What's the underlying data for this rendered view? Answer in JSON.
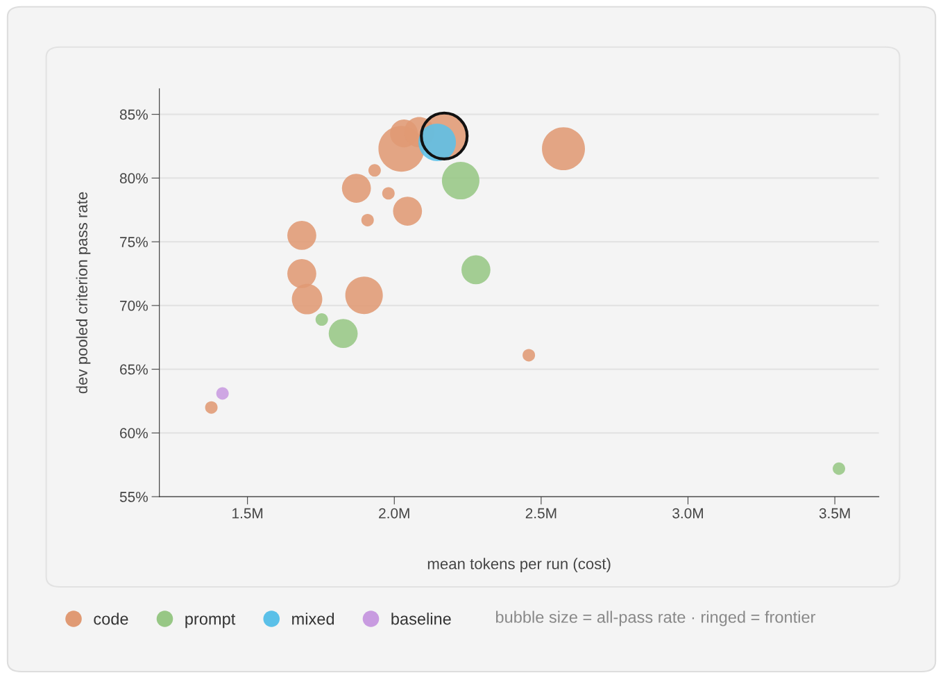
{
  "chart_data": {
    "type": "bubble",
    "xlabel": "mean tokens per run (cost)",
    "ylabel": "dev pooled criterion pass rate",
    "xlim": [
      1.2,
      3.65
    ],
    "xticks": [
      {
        "value": 1.5,
        "label": "1.5M"
      },
      {
        "value": 2.0,
        "label": "2.0M"
      },
      {
        "value": 2.5,
        "label": "2.5M"
      },
      {
        "value": 3.0,
        "label": "3.0M"
      },
      {
        "value": 3.5,
        "label": "3.5M"
      }
    ],
    "ylim": [
      55,
      87
    ],
    "yticks": [
      {
        "value": 55,
        "label": "55%"
      },
      {
        "value": 60,
        "label": "60%"
      },
      {
        "value": 65,
        "label": "65%"
      },
      {
        "value": 70,
        "label": "70%"
      },
      {
        "value": 75,
        "label": "75%"
      },
      {
        "value": 80,
        "label": "80%"
      },
      {
        "value": 85,
        "label": "85%"
      }
    ],
    "grid": "y",
    "legend": "bottom",
    "marker": "circle",
    "annotations": [
      "bubble size = all-pass rate · ringed = frontier"
    ],
    "series": [
      {
        "name": "code",
        "color": "#e09a74",
        "x": [
          1.377,
          1.685,
          1.685,
          1.703,
          1.897,
          1.871,
          1.933,
          1.98,
          1.909,
          2.045,
          2.024,
          2.033,
          2.085,
          2.17,
          2.576,
          2.458
        ],
        "values": [
          62.0,
          75.5,
          72.5,
          70.5,
          70.8,
          79.2,
          80.6,
          78.8,
          76.7,
          77.4,
          82.3,
          83.5,
          83.6,
          83.3,
          82.3,
          66.1
        ],
        "sizes": [
          0.074,
          0.4,
          0.4,
          0.44,
          0.67,
          0.4,
          0.074,
          0.074,
          0.074,
          0.4,
          1,
          0.37,
          0.44,
          1,
          0.88,
          0.074
        ]
      },
      {
        "name": "prompt",
        "color": "#97c785",
        "x": [
          2.226,
          2.278,
          1.826,
          1.753,
          3.514
        ],
        "values": [
          79.8,
          72.8,
          67.8,
          68.9,
          57.2
        ],
        "sizes": [
          0.67,
          0.4,
          0.4,
          0.074,
          0.074
        ]
      },
      {
        "name": "mixed",
        "color": "#5bc0e8",
        "x": [
          2.146
        ],
        "values": [
          82.8
        ],
        "sizes": [
          0.67
        ]
      },
      {
        "name": "baseline",
        "color": "#c89be0",
        "x": [
          1.415
        ],
        "values": [
          63.1
        ],
        "sizes": [
          0.074
        ]
      },
      {
        "color": "#111111",
        "x": [
          2.17
        ],
        "values": [
          83.3
        ],
        "sizes": [
          1
        ]
      }
    ]
  }
}
